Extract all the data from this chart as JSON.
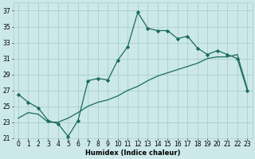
{
  "xlabel": "Humidex (Indice chaleur)",
  "xlim_min": -0.5,
  "xlim_max": 23.5,
  "ylim_min": 21,
  "ylim_max": 38,
  "yticks": [
    21,
    23,
    25,
    27,
    29,
    31,
    33,
    35,
    37
  ],
  "xticks": [
    0,
    1,
    2,
    3,
    4,
    5,
    6,
    7,
    8,
    9,
    10,
    11,
    12,
    13,
    14,
    15,
    16,
    17,
    18,
    19,
    20,
    21,
    22,
    23
  ],
  "bg_color": "#cce8e8",
  "grid_color": "#aacece",
  "line_color": "#1a6b5a",
  "line1_x": [
    0,
    1,
    2,
    3,
    4,
    5,
    6,
    7,
    8,
    9,
    10,
    11,
    12,
    13,
    14,
    15,
    16,
    17,
    18,
    19,
    20,
    21,
    22,
    23
  ],
  "line1_y": [
    26.5,
    25.5,
    24.8,
    23.2,
    22.8,
    21.2,
    23.2,
    28.2,
    28.5,
    28.3,
    30.8,
    32.5,
    36.8,
    34.8,
    34.5,
    34.5,
    33.5,
    33.8,
    32.3,
    31.5,
    32.0,
    31.5,
    31.0,
    27.0
  ],
  "line2_x": [
    0,
    1,
    2,
    3,
    4,
    5,
    6,
    7,
    8,
    9,
    10,
    11,
    12,
    13,
    14,
    15,
    16,
    17,
    18,
    19,
    20,
    21,
    22,
    23
  ],
  "line2_y": [
    23.5,
    24.2,
    24.0,
    23.0,
    23.0,
    23.5,
    24.2,
    25.0,
    25.5,
    25.8,
    26.3,
    27.0,
    27.5,
    28.2,
    28.8,
    29.2,
    29.6,
    30.0,
    30.4,
    31.0,
    31.2,
    31.2,
    31.5,
    27.2
  ],
  "xlabel_fontsize": 6,
  "tick_fontsize": 5.5,
  "linewidth": 0.9,
  "markersize": 2.2
}
